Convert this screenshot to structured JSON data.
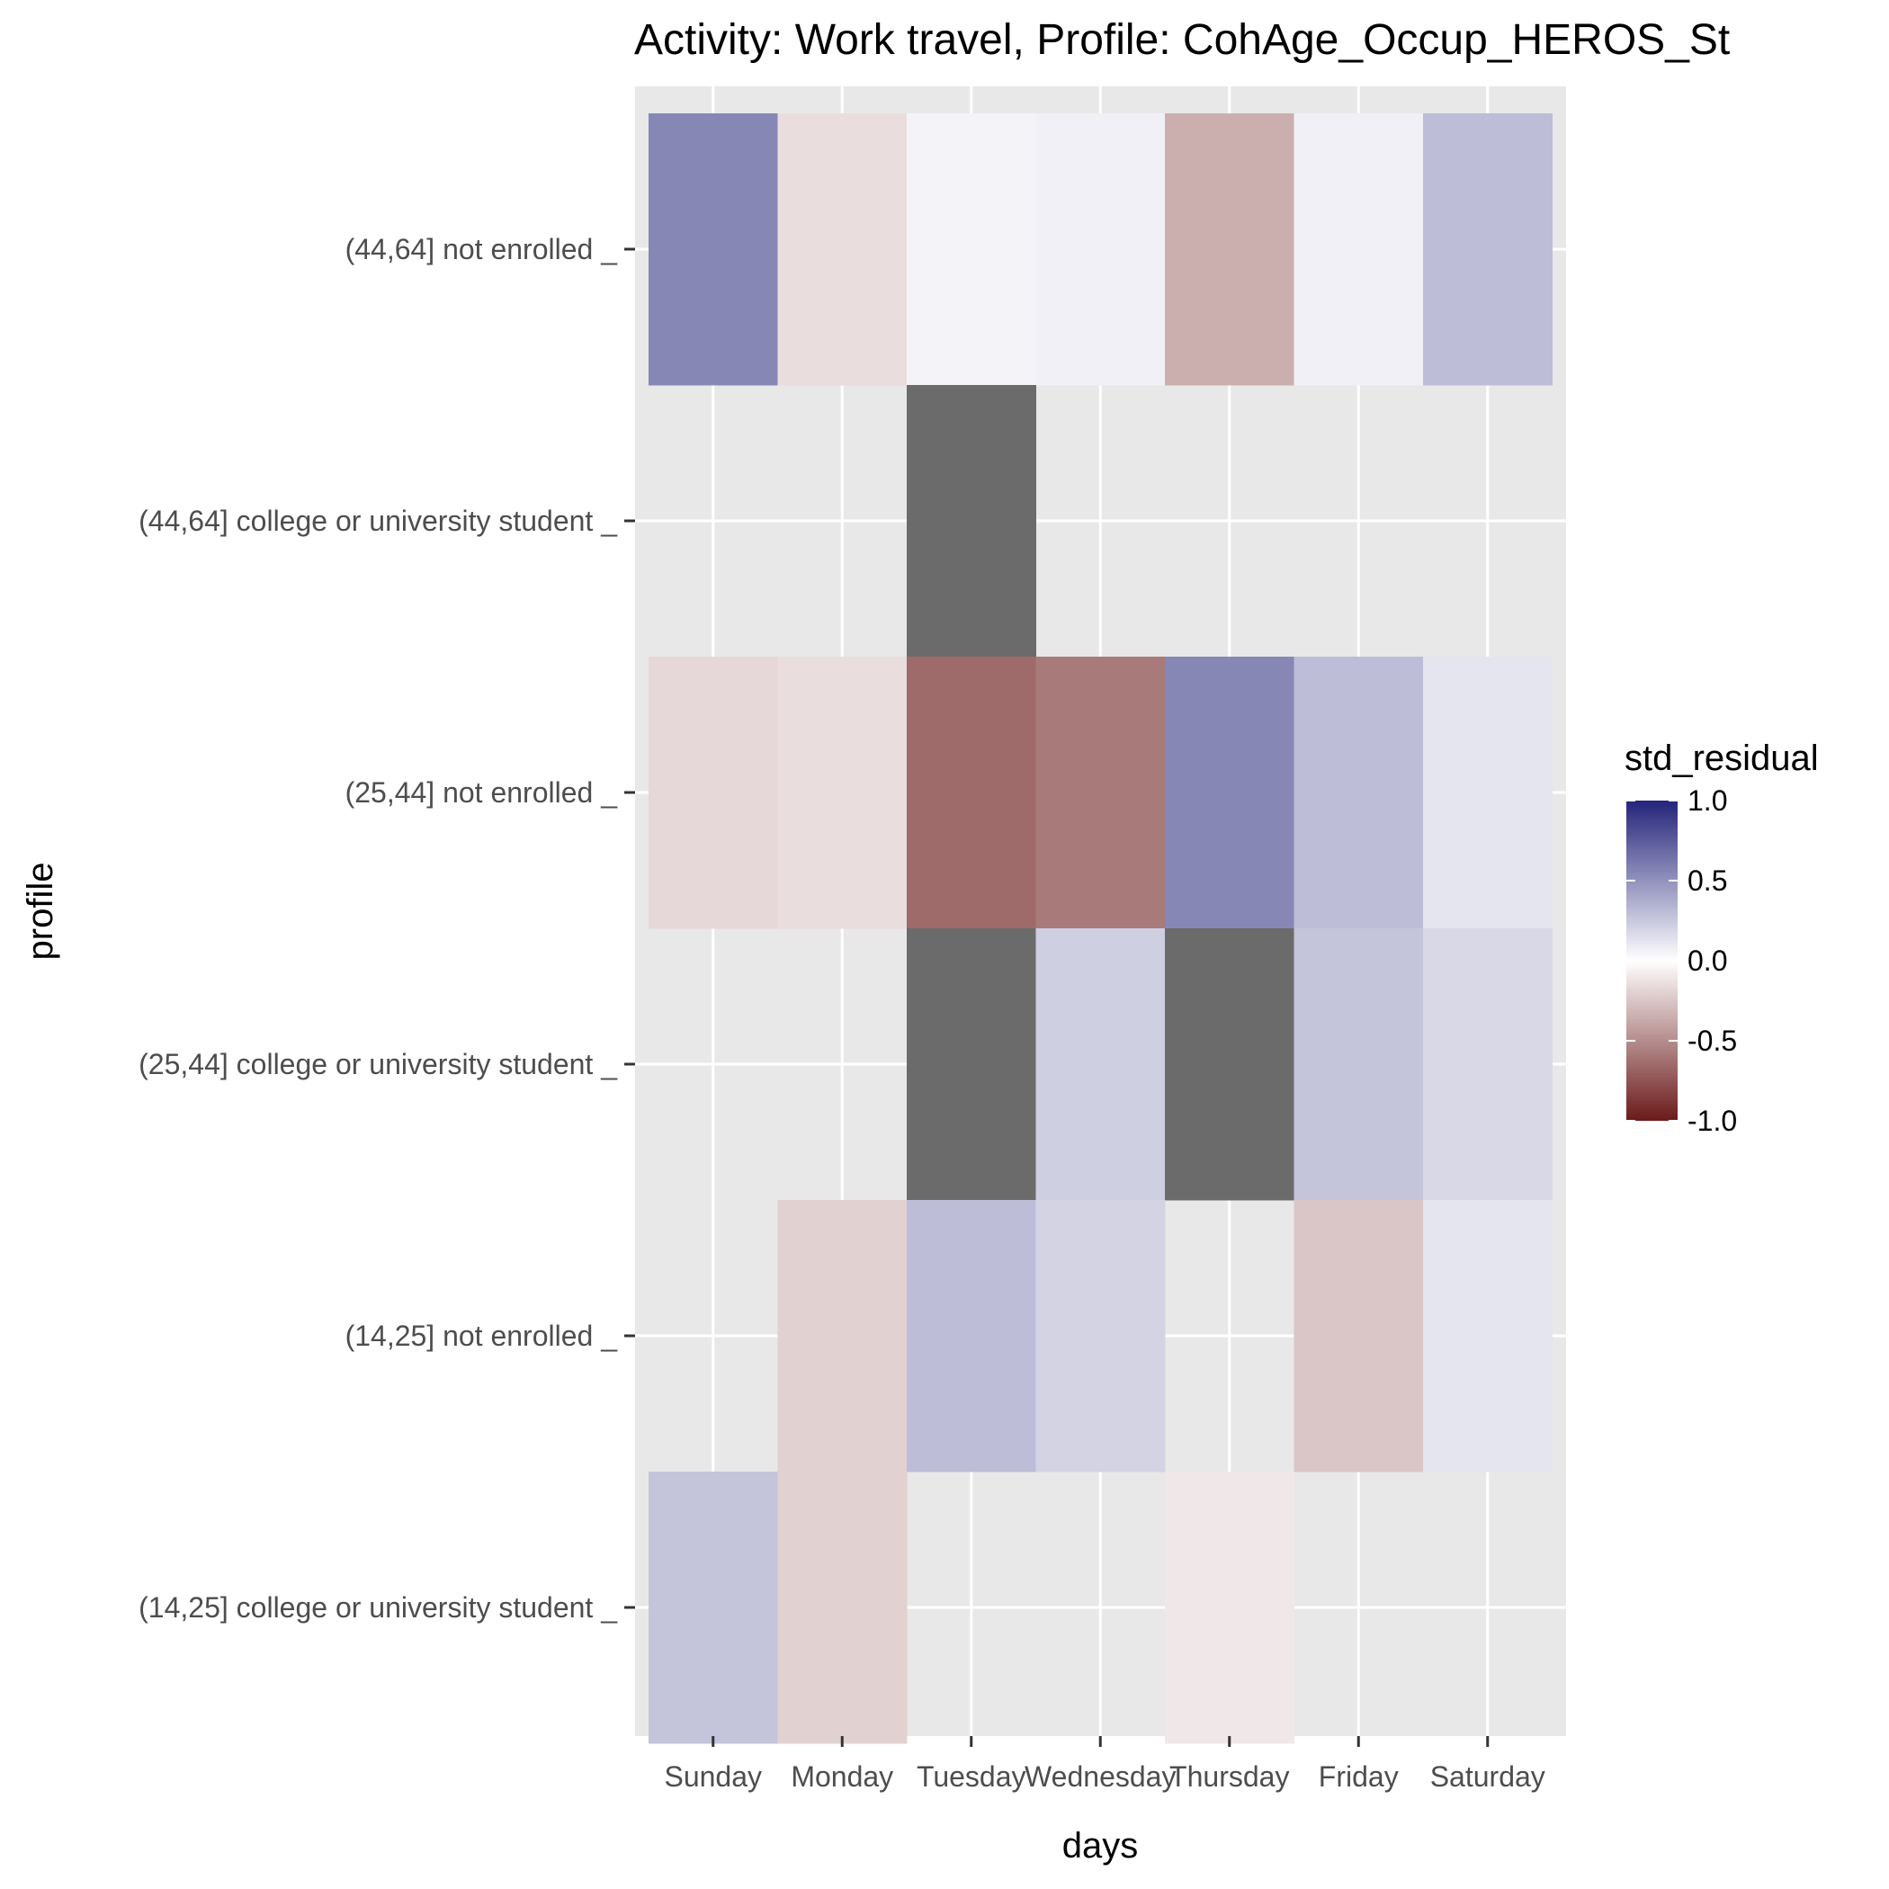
{
  "chart_data": {
    "type": "heatmap",
    "title": "Activity: Work travel, Profile: CohAge_Occup_HEROS_St",
    "xlabel": "days",
    "ylabel": "profile",
    "x_categories": [
      "Sunday",
      "Monday",
      "Tuesday",
      "Wednesday",
      "Thursday",
      "Friday",
      "Saturday"
    ],
    "y_categories": [
      "(44,64] not enrolled _",
      "(44,64] college or university student _",
      "(25,44] not enrolled _",
      "(25,44] college or university student _",
      "(14,25] not enrolled _",
      "(14,25] college or university student _"
    ],
    "values": [
      [
        0.55,
        -0.15,
        0.05,
        0.07,
        -0.35,
        0.07,
        0.3
      ],
      [
        null,
        null,
        "NA",
        null,
        null,
        null,
        null
      ],
      [
        -0.17,
        -0.15,
        -0.65,
        -0.58,
        0.55,
        0.3,
        0.12
      ],
      [
        null,
        null,
        "NA",
        0.22,
        "NA",
        0.27,
        0.18
      ],
      [
        null,
        -0.2,
        0.3,
        0.2,
        null,
        -0.25,
        0.12
      ],
      [
        0.27,
        -0.2,
        null,
        null,
        -0.1,
        null,
        null
      ]
    ],
    "na_color": "#6b6b6b",
    "legend": {
      "title": "std_residual",
      "ticks": [
        "1.0",
        "0.5",
        "0.0",
        "-0.5",
        "-1.0"
      ],
      "range": [
        -1,
        1
      ],
      "colors": {
        "low": "#6b1a1a",
        "mid": "#ffffff",
        "high": "#24247a"
      },
      "position": "right"
    },
    "grid": true
  }
}
